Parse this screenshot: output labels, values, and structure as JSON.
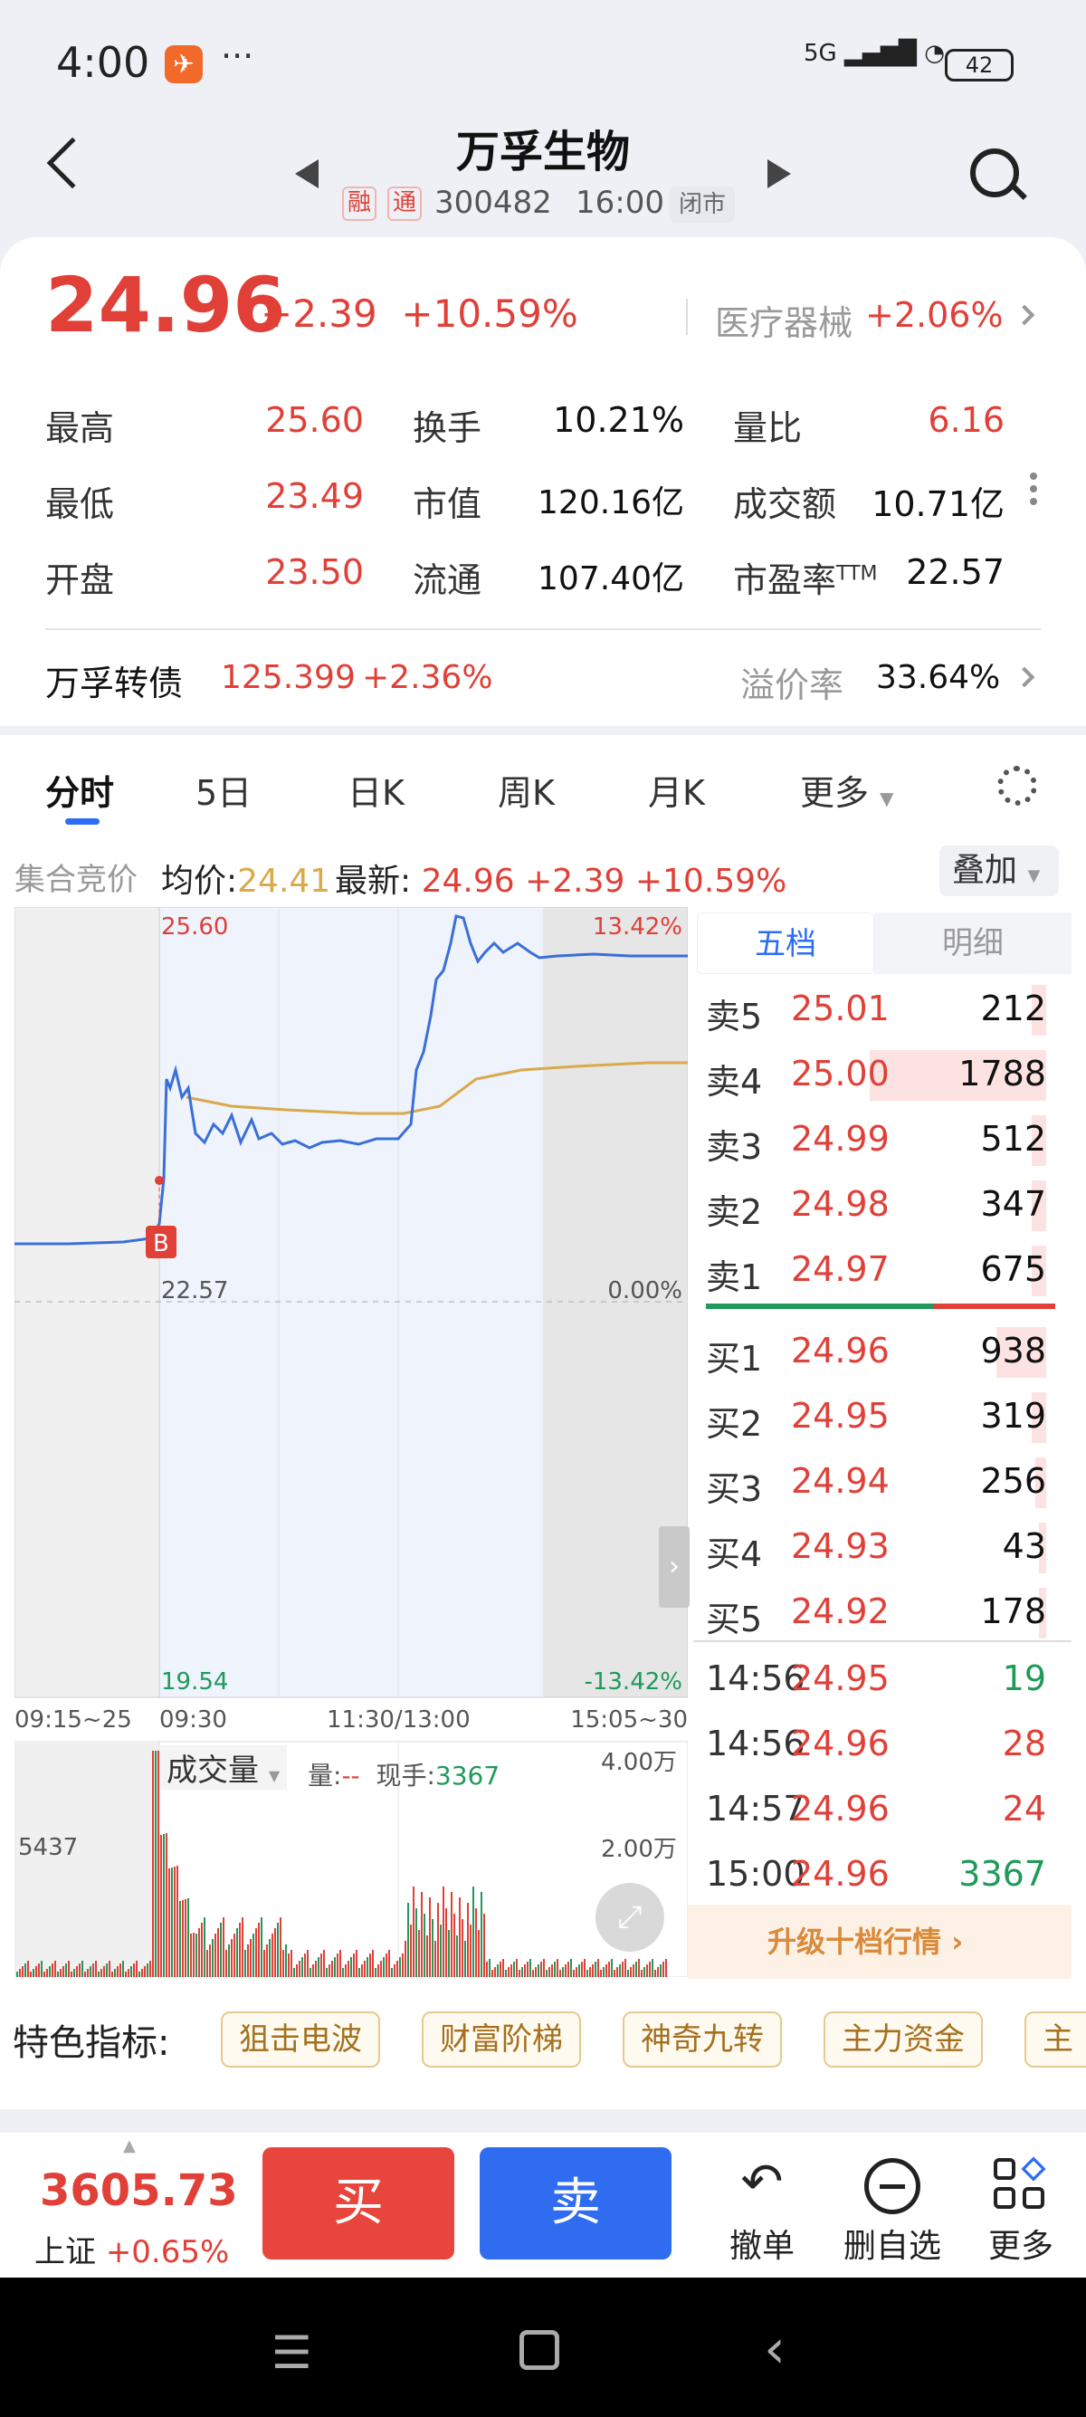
{
  "status_bar": {
    "time": "4:00",
    "more": "···",
    "network": "5G",
    "battery": "42"
  },
  "header": {
    "title": "万孚生物",
    "tags": [
      "融",
      "通"
    ],
    "code": "300482",
    "time": "16:00",
    "market_state": "闭市"
  },
  "quote": {
    "price": "24.96",
    "change": "+2.39",
    "change_pct": "+10.59%",
    "sector": {
      "name": "医疗器械",
      "change_pct": "+2.06%"
    },
    "stats": [
      [
        {
          "label": "最高",
          "value": "25.60",
          "color": "red"
        },
        {
          "label": "换手",
          "value": "10.21%"
        },
        {
          "label": "量比",
          "value": "6.16",
          "color": "red"
        }
      ],
      [
        {
          "label": "最低",
          "value": "23.49",
          "color": "red"
        },
        {
          "label": "市值",
          "value": "120.16亿"
        },
        {
          "label": "成交额",
          "value": "10.71亿"
        }
      ],
      [
        {
          "label": "开盘",
          "value": "23.50",
          "color": "red"
        },
        {
          "label": "流通",
          "value": "107.40亿"
        },
        {
          "label": "市盈率",
          "sup": "TTM",
          "value": "22.57"
        }
      ]
    ],
    "bond": {
      "name": "万孚转债",
      "price": "125.399",
      "change_pct": "+2.36%",
      "premium_label": "溢价率",
      "premium": "33.64%"
    }
  },
  "tabs": [
    "分时",
    "5日",
    "日K",
    "周K",
    "月K",
    "更多"
  ],
  "info_line": {
    "auction": "集合竞价",
    "avg_label": "均价:",
    "avg": "24.41",
    "latest_label": "最新:",
    "latest": "24.96 +2.39 +10.59%",
    "overlay": "叠加"
  },
  "chart": {
    "y_top": "25.60",
    "y_top_pct": "13.42%",
    "y_mid": "22.57",
    "y_mid_pct": "0.00%",
    "y_bottom": "19.54",
    "y_bottom_pct": "-13.42%",
    "x_labels": [
      "09:15~25",
      "09:30",
      "11:30/13:00",
      "15:05~30"
    ],
    "marker": "B"
  },
  "volume": {
    "label": "成交量",
    "qty_label": "量:",
    "qty": "--",
    "now_label": "现手:",
    "now": "3367",
    "top": "4.00万",
    "mid": "2.00万",
    "left": "5437"
  },
  "order_book": {
    "tabs": [
      "五档",
      "明细"
    ],
    "asks": [
      {
        "label": "卖5",
        "price": "25.01",
        "vol": "212",
        "bar": 0.04
      },
      {
        "label": "卖4",
        "price": "25.00",
        "vol": "1788",
        "bar": 0.5
      },
      {
        "label": "卖3",
        "price": "24.99",
        "vol": "512",
        "bar": 0.04
      },
      {
        "label": "卖2",
        "price": "24.98",
        "vol": "347",
        "bar": 0.04
      },
      {
        "label": "卖1",
        "price": "24.97",
        "vol": "675",
        "bar": 0.04
      }
    ],
    "bids": [
      {
        "label": "买1",
        "price": "24.96",
        "vol": "938",
        "bar": 0.14
      },
      {
        "label": "买2",
        "price": "24.95",
        "vol": "319",
        "bar": 0.04
      },
      {
        "label": "买3",
        "price": "24.94",
        "vol": "256",
        "bar": 0.03
      },
      {
        "label": "买4",
        "price": "24.93",
        "vol": "43",
        "bar": 0.0
      },
      {
        "label": "买5",
        "price": "24.92",
        "vol": "178",
        "bar": 0.02
      }
    ],
    "ticks": [
      {
        "time": "14:56",
        "price": "24.95",
        "vol": "19",
        "color": "green"
      },
      {
        "time": "14:56",
        "price": "24.96",
        "vol": "28",
        "color": "red"
      },
      {
        "time": "14:57",
        "price": "24.96",
        "vol": "24",
        "color": "red"
      },
      {
        "time": "15:00",
        "price": "24.96",
        "vol": "3367",
        "color": "green"
      }
    ],
    "upgrade": "升级十档行情"
  },
  "features": {
    "label": "特色指标:",
    "chips": [
      "狙击电波",
      "财富阶梯",
      "神奇九转",
      "主力资金",
      "主"
    ]
  },
  "bottom": {
    "index_value": "3605.73",
    "index_name": "上证",
    "index_change": "+0.65%",
    "buy": "买",
    "sell": "卖",
    "actions": [
      {
        "label": "撤单",
        "icon": "undo-icon"
      },
      {
        "label": "删自选",
        "icon": "remove-watch-icon"
      },
      {
        "label": "更多",
        "icon": "grid-icon"
      }
    ]
  },
  "colors": {
    "red": "#e04038",
    "green": "#1f9a5a",
    "blue": "#2d6df6",
    "avg_line": "#d9a94a",
    "price_line": "#3a6fd8"
  }
}
